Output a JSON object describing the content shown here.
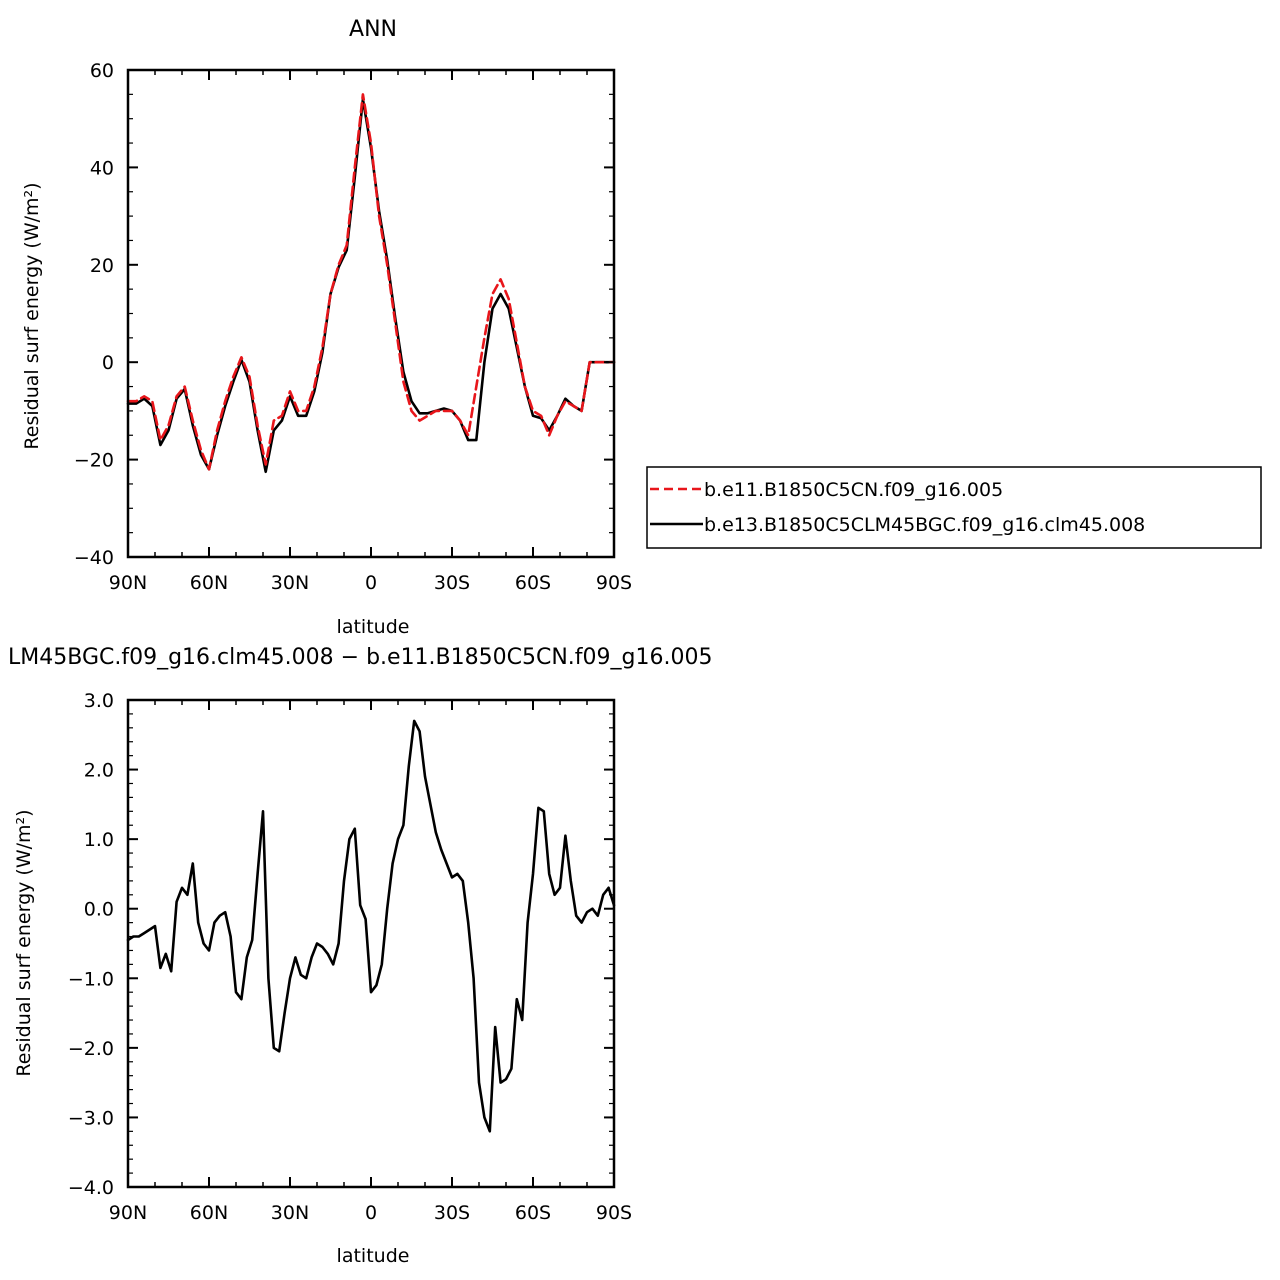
{
  "chart_data": [
    {
      "type": "line",
      "title": "ANN",
      "xlabel": "latitude",
      "ylabel": "Residual surf energy (W/m²)",
      "xlim": [
        90,
        -90
      ],
      "ylim": [
        -40,
        60
      ],
      "x_tick_labels": [
        "90N",
        "60N",
        "30N",
        "0",
        "30S",
        "60S",
        "90S"
      ],
      "x_tick_values": [
        90,
        60,
        30,
        0,
        -30,
        -60,
        -90
      ],
      "y_tick_labels": [
        "−40",
        "−20",
        "0",
        "20",
        "40",
        "60"
      ],
      "y_tick_values": [
        -40,
        -20,
        0,
        20,
        40,
        60
      ],
      "legend_position": "right",
      "series": [
        {
          "name": "b.e11.B1850C5CN.f09_g16.005",
          "color": "#e8161b",
          "dash": "dashed",
          "x": [
            90,
            87,
            84,
            81,
            78,
            75,
            72,
            69,
            66,
            63,
            60,
            57,
            54,
            51,
            48,
            45,
            42,
            39,
            36,
            33,
            30,
            27,
            24,
            21,
            18,
            15,
            12,
            9,
            6,
            3,
            0,
            -3,
            -6,
            -9,
            -12,
            -15,
            -18,
            -21,
            -24,
            -27,
            -30,
            -33,
            -36,
            -39,
            -42,
            -45,
            -48,
            -51,
            -54,
            -57,
            -60,
            -63,
            -66,
            -69,
            -72,
            -75,
            -78,
            -81,
            -84,
            -87,
            -90
          ],
          "values": [
            -8,
            -8,
            -7,
            -8,
            -16,
            -13,
            -7,
            -5,
            -12,
            -18,
            -22,
            -14,
            -8,
            -3,
            1,
            -3,
            -13,
            -21,
            -12,
            -11,
            -6,
            -10,
            -10,
            -5,
            3,
            14,
            20,
            24,
            40,
            55,
            45,
            30,
            20,
            8,
            -4,
            -10,
            -12,
            -11,
            -10,
            -10,
            -10,
            -12,
            -15,
            -5,
            5,
            14,
            17,
            13,
            4,
            -5,
            -10,
            -11,
            -15,
            -11,
            -8,
            -9,
            -10,
            0,
            0,
            0,
            0
          ]
        },
        {
          "name": "b.e13.B1850C5CLM45BGC.f09_g16.clm45.008",
          "color": "#000000",
          "dash": "solid",
          "x": [
            90,
            87,
            84,
            81,
            78,
            75,
            72,
            69,
            66,
            63,
            60,
            57,
            54,
            51,
            48,
            45,
            42,
            39,
            36,
            33,
            30,
            27,
            24,
            21,
            18,
            15,
            12,
            9,
            6,
            3,
            0,
            -3,
            -6,
            -9,
            -12,
            -15,
            -18,
            -21,
            -24,
            -27,
            -30,
            -33,
            -36,
            -39,
            -42,
            -45,
            -48,
            -51,
            -54,
            -57,
            -60,
            -63,
            -66,
            -69,
            -72,
            -75,
            -78,
            -81,
            -84,
            -87,
            -90
          ],
          "values": [
            -8.5,
            -8.5,
            -7.5,
            -9,
            -17,
            -14,
            -7.5,
            -5.5,
            -13,
            -19,
            -22,
            -15,
            -9,
            -4,
            0.5,
            -4,
            -14,
            -22.5,
            -14,
            -12,
            -7,
            -11,
            -11,
            -6,
            2,
            14,
            19.5,
            23,
            38,
            54,
            44,
            31,
            21,
            9,
            -2,
            -8,
            -10.5,
            -10.5,
            -10,
            -9.5,
            -10,
            -12,
            -16,
            -16,
            0,
            11,
            14,
            11,
            3,
            -5,
            -11,
            -11.5,
            -14,
            -11,
            -7.5,
            -9,
            -10,
            0,
            0,
            0,
            0
          ]
        }
      ]
    },
    {
      "type": "line",
      "title": "LM45BGC.f09_g16.clm45.008 − b.e11.B1850C5CN.f09_g16.005",
      "xlabel": "latitude",
      "ylabel": "Residual surf energy (W/m²)",
      "xlim": [
        90,
        -90
      ],
      "ylim": [
        -4.0,
        3.0
      ],
      "x_tick_labels": [
        "90N",
        "60N",
        "30N",
        "0",
        "30S",
        "60S",
        "90S"
      ],
      "x_tick_values": [
        90,
        60,
        30,
        0,
        -30,
        -60,
        -90
      ],
      "y_tick_labels": [
        "−4.0",
        "−3.0",
        "−2.0",
        "−1.0",
        "0.0",
        "1.0",
        "2.0",
        "3.0"
      ],
      "y_tick_values": [
        -4,
        -3,
        -2,
        -1,
        0,
        1,
        2,
        3
      ],
      "series": [
        {
          "color": "#000000",
          "dash": "solid",
          "x": [
            90,
            88,
            86,
            84,
            82,
            80,
            78,
            76,
            74,
            72,
            70,
            68,
            66,
            64,
            62,
            60,
            58,
            56,
            54,
            52,
            50,
            48,
            46,
            44,
            42,
            40,
            38,
            36,
            34,
            32,
            30,
            28,
            26,
            24,
            22,
            20,
            18,
            16,
            14,
            12,
            10,
            8,
            6,
            4,
            2,
            0,
            -2,
            -4,
            -6,
            -8,
            -10,
            -12,
            -14,
            -16,
            -18,
            -20,
            -22,
            -24,
            -26,
            -28,
            -30,
            -32,
            -34,
            -36,
            -38,
            -40,
            -42,
            -44,
            -46,
            -48,
            -50,
            -52,
            -54,
            -56,
            -58,
            -60,
            -62,
            -64,
            -66,
            -68,
            -70,
            -72,
            -74,
            -76,
            -78,
            -80,
            -82,
            -84,
            -86,
            -88,
            -90
          ],
          "values": [
            -0.45,
            -0.4,
            -0.4,
            -0.35,
            -0.3,
            -0.25,
            -0.85,
            -0.65,
            -0.9,
            0.1,
            0.3,
            0.2,
            0.65,
            -0.2,
            -0.5,
            -0.6,
            -0.2,
            -0.1,
            -0.05,
            -0.4,
            -1.2,
            -1.3,
            -0.7,
            -0.45,
            0.5,
            1.4,
            -1.0,
            -2.0,
            -2.05,
            -1.5,
            -1.0,
            -0.7,
            -0.95,
            -1.0,
            -0.7,
            -0.5,
            -0.55,
            -0.65,
            -0.8,
            -0.5,
            0.4,
            1.0,
            1.15,
            0.05,
            -0.15,
            -1.2,
            -1.1,
            -0.8,
            0.0,
            0.65,
            1.0,
            1.2,
            2.05,
            2.7,
            2.55,
            1.9,
            1.5,
            1.1,
            0.85,
            0.65,
            0.45,
            0.5,
            0.4,
            -0.2,
            -1.0,
            -2.5,
            -3.0,
            -3.2,
            -1.7,
            -2.5,
            -2.45,
            -2.3,
            -1.3,
            -1.6,
            -0.2,
            0.5,
            1.45,
            1.4,
            0.5,
            0.2,
            0.3,
            1.05,
            0.4,
            -0.1,
            -0.2,
            -0.05,
            0.0,
            -0.1,
            0.2,
            0.3,
            0.05
          ]
        }
      ]
    }
  ]
}
